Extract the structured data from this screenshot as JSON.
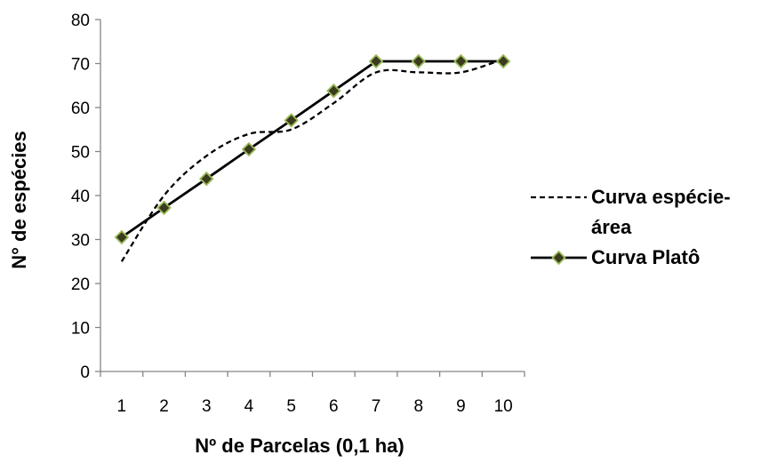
{
  "chart_data": {
    "type": "line",
    "xlabel": "Nº de Parcelas (0,1 ha)",
    "ylabel": "N° de espécies",
    "categories": [
      "1",
      "2",
      "3",
      "4",
      "5",
      "6",
      "7",
      "8",
      "9",
      "10"
    ],
    "ylim": [
      0,
      80
    ],
    "yticks": [
      0,
      10,
      20,
      30,
      40,
      50,
      60,
      70,
      80
    ],
    "grid": false,
    "legend_position": "right",
    "series": [
      {
        "name": "Curva espécie-área",
        "legend_lines": [
          "Curva espécie-",
          "área"
        ],
        "style": "dashed",
        "color": "#000000",
        "values": [
          25,
          40,
          49,
          54,
          55,
          61,
          68,
          68,
          68,
          71
        ]
      },
      {
        "name": "Curva Platô",
        "legend_lines": [
          "Curva Platô"
        ],
        "style": "solid",
        "color": "#000000",
        "marker": "diamond",
        "marker_fill": "#3b3b1f",
        "marker_stroke": "#9bbb59",
        "values": [
          30.5,
          37.2,
          43.8,
          50.5,
          57.1,
          63.8,
          70.5,
          70.5,
          70.5,
          70.5
        ]
      }
    ]
  }
}
